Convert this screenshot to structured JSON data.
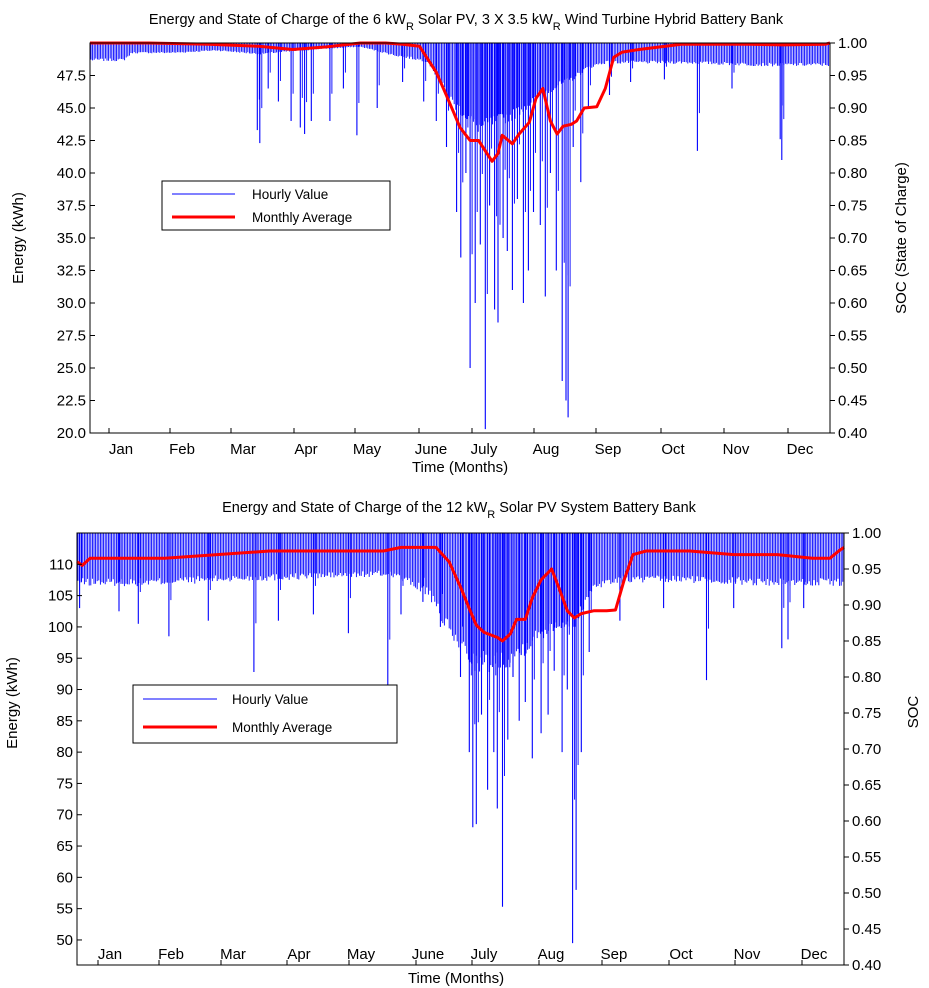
{
  "figure": {
    "colors": {
      "hourly": "#0000ff",
      "monthly": "#ff0000",
      "axis": "#000000",
      "background": "#ffffff"
    }
  },
  "chart_data": [
    {
      "type": "line",
      "title": "Energy and State of Charge of the 6 kW",
      "title_sub": "R",
      "title_mid": " Solar PV, 3 X 3.5 kW",
      "title_sub2": "R",
      "title_end": " Wind Turbine Hybrid Battery Bank",
      "xlabel": "Time (Months)",
      "ylabel": "Energy (kWh)",
      "y2label": "SOC (State of Charge)",
      "xlim": [
        0,
        8760
      ],
      "ylim": [
        20,
        50
      ],
      "y2lim": [
        0.4,
        1.0
      ],
      "month_ticks": [
        "Jan",
        "Feb",
        "Mar",
        "Apr",
        "May",
        "June",
        "July",
        "Aug",
        "Sep",
        "Oct",
        "Nov",
        "Dec"
      ],
      "yticks": [
        "20.0",
        "22.5",
        "25.0",
        "27.5",
        "30.0",
        "32.5",
        "35.0",
        "37.5",
        "40.0",
        "42.5",
        "45.0",
        "47.5"
      ],
      "y2ticks": [
        "0.40",
        "0.45",
        "0.50",
        "0.55",
        "0.60",
        "0.65",
        "0.70",
        "0.75",
        "0.80",
        "0.85",
        "0.90",
        "0.95",
        "1.00"
      ],
      "legend": {
        "position": "center-left",
        "entries": [
          "Hourly Value",
          "Monthly Average"
        ]
      },
      "series": [
        {
          "name": "Hourly Value",
          "kind": "hourly-envelope",
          "upper": 50,
          "band_low": [
            [
              0,
              48.6
            ],
            [
              400,
              48.6
            ],
            [
              500,
              49.2
            ],
            [
              1000,
              49.2
            ],
            [
              1500,
              49.4
            ],
            [
              2000,
              49.1
            ],
            [
              2700,
              49.5
            ],
            [
              3200,
              49.7
            ],
            [
              3600,
              49.0
            ],
            [
              4000,
              48.5
            ],
            [
              4300,
              45.0
            ],
            [
              4600,
              43.0
            ],
            [
              5000,
              44.0
            ],
            [
              5400,
              46.0
            ],
            [
              5700,
              47.0
            ],
            [
              5900,
              48.0
            ],
            [
              6100,
              48.4
            ],
            [
              7000,
              48.4
            ],
            [
              8000,
              48.2
            ],
            [
              8760,
              48.2
            ]
          ],
          "dips": [
            [
              1980,
              43.3
            ],
            [
              2010,
              42.3
            ],
            [
              2110,
              46.5
            ],
            [
              2230,
              45.5
            ],
            [
              2380,
              44.0
            ],
            [
              2490,
              43.5
            ],
            [
              2540,
              43.0
            ],
            [
              2620,
              44.0
            ],
            [
              2840,
              44.0
            ],
            [
              3000,
              46.5
            ],
            [
              3160,
              42.9
            ],
            [
              3400,
              45.0
            ],
            [
              3700,
              47.0
            ],
            [
              3950,
              45.5
            ],
            [
              4100,
              44.0
            ],
            [
              4220,
              42.0
            ],
            [
              4340,
              37.0
            ],
            [
              4390,
              33.5
            ],
            [
              4450,
              40.0
            ],
            [
              4500,
              25.0
            ],
            [
              4560,
              30.0
            ],
            [
              4620,
              34.5
            ],
            [
              4680,
              20.3
            ],
            [
              4730,
              37.5
            ],
            [
              4790,
              29.5
            ],
            [
              4830,
              28.5
            ],
            [
              4890,
              35.0
            ],
            [
              4940,
              34.0
            ],
            [
              5000,
              31.0
            ],
            [
              5060,
              38.0
            ],
            [
              5130,
              30.0
            ],
            [
              5190,
              32.5
            ],
            [
              5250,
              37.0
            ],
            [
              5330,
              36.0
            ],
            [
              5390,
              30.5
            ],
            [
              5450,
              40.0
            ],
            [
              5520,
              32.5
            ],
            [
              5590,
              24.0
            ],
            [
              5635,
              22.5
            ],
            [
              5660,
              21.2
            ],
            [
              5720,
              42.0
            ],
            [
              5810,
              39.3
            ],
            [
              5900,
              45.0
            ],
            [
              6150,
              46.0
            ],
            [
              6400,
              47.0
            ],
            [
              6800,
              47.2
            ],
            [
              7190,
              41.7
            ],
            [
              7600,
              46.5
            ],
            [
              8170,
              42.6
            ],
            [
              8190,
              41.0
            ]
          ]
        },
        {
          "name": "Monthly Average",
          "axis": "right",
          "points": [
            [
              0,
              1.0
            ],
            [
              700,
              1.0
            ],
            [
              1400,
              0.998
            ],
            [
              2000,
              0.995
            ],
            [
              2400,
              0.99
            ],
            [
              2800,
              0.994
            ],
            [
              3200,
              1.0
            ],
            [
              3500,
              1.0
            ],
            [
              3700,
              0.998
            ],
            [
              3900,
              0.995
            ],
            [
              4000,
              0.975
            ],
            [
              4100,
              0.955
            ],
            [
              4200,
              0.925
            ],
            [
              4300,
              0.895
            ],
            [
              4380,
              0.87
            ],
            [
              4500,
              0.85
            ],
            [
              4600,
              0.85
            ],
            [
              4700,
              0.83
            ],
            [
              4760,
              0.818
            ],
            [
              4830,
              0.83
            ],
            [
              4880,
              0.858
            ],
            [
              5000,
              0.845
            ],
            [
              5080,
              0.86
            ],
            [
              5200,
              0.878
            ],
            [
              5280,
              0.915
            ],
            [
              5360,
              0.93
            ],
            [
              5450,
              0.88
            ],
            [
              5530,
              0.86
            ],
            [
              5600,
              0.872
            ],
            [
              5700,
              0.875
            ],
            [
              5760,
              0.88
            ],
            [
              5850,
              0.9
            ],
            [
              6000,
              0.902
            ],
            [
              6100,
              0.93
            ],
            [
              6200,
              0.978
            ],
            [
              6300,
              0.986
            ],
            [
              6500,
              0.99
            ],
            [
              7000,
              0.998
            ],
            [
              7800,
              0.998
            ],
            [
              8200,
              0.997
            ],
            [
              8700,
              0.998
            ],
            [
              8760,
              1.0
            ]
          ]
        }
      ]
    },
    {
      "type": "line",
      "title": "Energy and State of Charge of the 12 kW",
      "title_sub": "R",
      "title_end": " Solar PV System Battery Bank",
      "xlabel": "Time (Months)",
      "ylabel": "Energy (kWh)",
      "y2label": "SOC",
      "xlim": [
        0,
        8760
      ],
      "ylim": [
        46,
        115
      ],
      "y2lim": [
        0.4,
        1.0
      ],
      "month_ticks": [
        "Jan",
        "Feb",
        "Mar",
        "Apr",
        "May",
        "June",
        "July",
        "Aug",
        "Sep",
        "Oct",
        "Nov",
        "Dec"
      ],
      "yticks": [
        "50",
        "55",
        "60",
        "65",
        "70",
        "75",
        "80",
        "85",
        "90",
        "95",
        "100",
        "105",
        "110"
      ],
      "y2ticks": [
        "0.40",
        "0.45",
        "0.50",
        "0.55",
        "0.60",
        "0.65",
        "0.70",
        "0.75",
        "0.80",
        "0.85",
        "0.90",
        "0.95",
        "1.00"
      ],
      "legend": {
        "position": "center-left",
        "entries": [
          "Hourly Value",
          "Monthly Average"
        ]
      },
      "series": [
        {
          "name": "Hourly Value",
          "kind": "hourly-envelope",
          "upper": 115,
          "band_low": [
            [
              0,
              106.5
            ],
            [
              800,
              106.5
            ],
            [
              1500,
              107.0
            ],
            [
              2500,
              107.5
            ],
            [
              3600,
              108.0
            ],
            [
              4000,
              105.0
            ],
            [
              4300,
              97.0
            ],
            [
              4600,
              92.0
            ],
            [
              5000,
              94.0
            ],
            [
              5400,
              99.0
            ],
            [
              5700,
              100.0
            ],
            [
              5900,
              106.0
            ],
            [
              6200,
              107.0
            ],
            [
              7000,
              107.0
            ],
            [
              8000,
              106.5
            ],
            [
              8760,
              106.5
            ]
          ],
          "dips": [
            [
              30,
              103.0
            ],
            [
              480,
              102.5
            ],
            [
              700,
              100.5
            ],
            [
              1050,
              98.5
            ],
            [
              1500,
              101.0
            ],
            [
              2020,
              92.8
            ],
            [
              2300,
              101.0
            ],
            [
              2700,
              102.0
            ],
            [
              3100,
              99.0
            ],
            [
              3550,
              88.8
            ],
            [
              3700,
              102.0
            ],
            [
              3950,
              104.0
            ],
            [
              4150,
              100.0
            ],
            [
              4380,
              92.0
            ],
            [
              4480,
              80.0
            ],
            [
              4520,
              68.0
            ],
            [
              4560,
              68.5
            ],
            [
              4620,
              86.0
            ],
            [
              4690,
              74.0
            ],
            [
              4760,
              80.0
            ],
            [
              4800,
              71.0
            ],
            [
              4860,
              55.3
            ],
            [
              4920,
              82.0
            ],
            [
              4980,
              92.0
            ],
            [
              5050,
              85.0
            ],
            [
              5120,
              88.0
            ],
            [
              5200,
              79.0
            ],
            [
              5300,
              83.0
            ],
            [
              5380,
              86.0
            ],
            [
              5450,
              93.0
            ],
            [
              5540,
              80.0
            ],
            [
              5600,
              90.0
            ],
            [
              5660,
              49.5
            ],
            [
              5700,
              58.0
            ],
            [
              5760,
              80.0
            ],
            [
              5850,
              96.0
            ],
            [
              6200,
              101.0
            ],
            [
              6700,
              103.0
            ],
            [
              7190,
              91.5
            ],
            [
              7500,
              103.0
            ],
            [
              8050,
              96.6
            ],
            [
              8120,
              98.0
            ],
            [
              8300,
              103.0
            ]
          ]
        },
        {
          "name": "Monthly Average",
          "axis": "right",
          "points": [
            [
              0,
              0.96
            ],
            [
              60,
              0.955
            ],
            [
              150,
              0.965
            ],
            [
              500,
              0.965
            ],
            [
              1000,
              0.965
            ],
            [
              1600,
              0.97
            ],
            [
              2200,
              0.975
            ],
            [
              2700,
              0.975
            ],
            [
              3200,
              0.975
            ],
            [
              3500,
              0.975
            ],
            [
              3700,
              0.98
            ],
            [
              4100,
              0.98
            ],
            [
              4250,
              0.96
            ],
            [
              4380,
              0.925
            ],
            [
              4480,
              0.895
            ],
            [
              4560,
              0.872
            ],
            [
              4650,
              0.862
            ],
            [
              4800,
              0.855
            ],
            [
              4860,
              0.85
            ],
            [
              4950,
              0.86
            ],
            [
              5020,
              0.88
            ],
            [
              5120,
              0.88
            ],
            [
              5200,
              0.91
            ],
            [
              5300,
              0.935
            ],
            [
              5420,
              0.95
            ],
            [
              5500,
              0.925
            ],
            [
              5600,
              0.892
            ],
            [
              5680,
              0.882
            ],
            [
              5760,
              0.888
            ],
            [
              5900,
              0.892
            ],
            [
              6050,
              0.892
            ],
            [
              6150,
              0.893
            ],
            [
              6250,
              0.935
            ],
            [
              6350,
              0.97
            ],
            [
              6500,
              0.975
            ],
            [
              7000,
              0.975
            ],
            [
              7500,
              0.97
            ],
            [
              8000,
              0.97
            ],
            [
              8400,
              0.965
            ],
            [
              8600,
              0.965
            ],
            [
              8700,
              0.975
            ],
            [
              8760,
              0.98
            ]
          ]
        }
      ]
    }
  ]
}
